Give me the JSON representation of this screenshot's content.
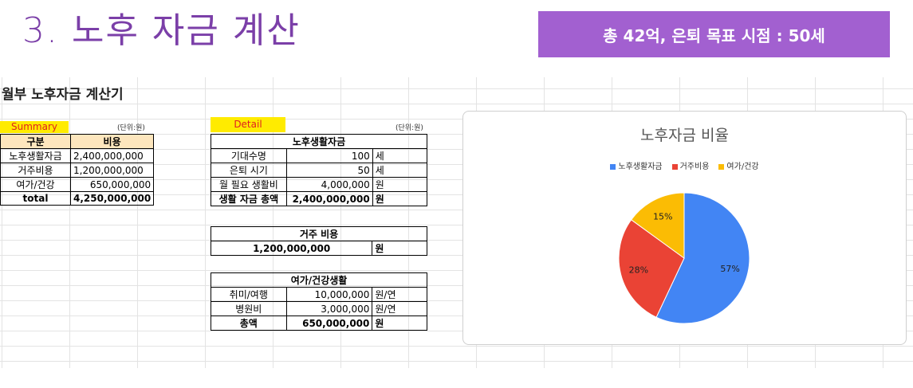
{
  "slide": {
    "heading": "3. 노후 자금 계산",
    "banner": "총 42억, 은퇴 목표 시점  : 50세"
  },
  "sheet": {
    "title": "월부 노후자금 계산기",
    "summary": {
      "tag": "Summary",
      "unit": "(단위:원)",
      "col1": "구분",
      "col2": "비용",
      "rows": [
        {
          "label": "노후생활자금",
          "value": "2,400,000,000"
        },
        {
          "label": "거주비용",
          "value": "1,200,000,000"
        },
        {
          "label": "여가/건강",
          "value": "650,000,000"
        },
        {
          "label": "total",
          "value": "4,250,000,000"
        }
      ]
    },
    "detail": {
      "tag": "Detail",
      "unit": "(단위:원)",
      "living": {
        "header": "노후생활자금",
        "rows": [
          {
            "label": "기대수명",
            "value": "100",
            "unit": "세"
          },
          {
            "label": "은퇴 시기",
            "value": "50",
            "unit": "세"
          },
          {
            "label": "월 필요 생활비",
            "value": "4,000,000",
            "unit": "원"
          },
          {
            "label": "생활 자금 총액",
            "value": "2,400,000,000",
            "unit": "원"
          }
        ]
      },
      "housing": {
        "header": "거주 비용",
        "value": "1,200,000,000",
        "unit": "원"
      },
      "leisure": {
        "header": "여가/건강생활",
        "rows": [
          {
            "label": "취미/여행",
            "value": "10,000,000",
            "unit": "원/연"
          },
          {
            "label": "병원비",
            "value": "3,000,000",
            "unit": "원/연"
          },
          {
            "label": "총액",
            "value": "650,000,000",
            "unit": "원"
          }
        ]
      }
    }
  },
  "chart_data": {
    "type": "pie",
    "title": "노후자금 비율",
    "legend_position": "top",
    "categories": [
      "노후생활자금",
      "거주비용",
      "여가/건강"
    ],
    "values": [
      57,
      28,
      15
    ],
    "labels": [
      "57%",
      "28%",
      "15%"
    ],
    "colors": [
      "#4285f4",
      "#ea4335",
      "#fbbc04"
    ]
  }
}
